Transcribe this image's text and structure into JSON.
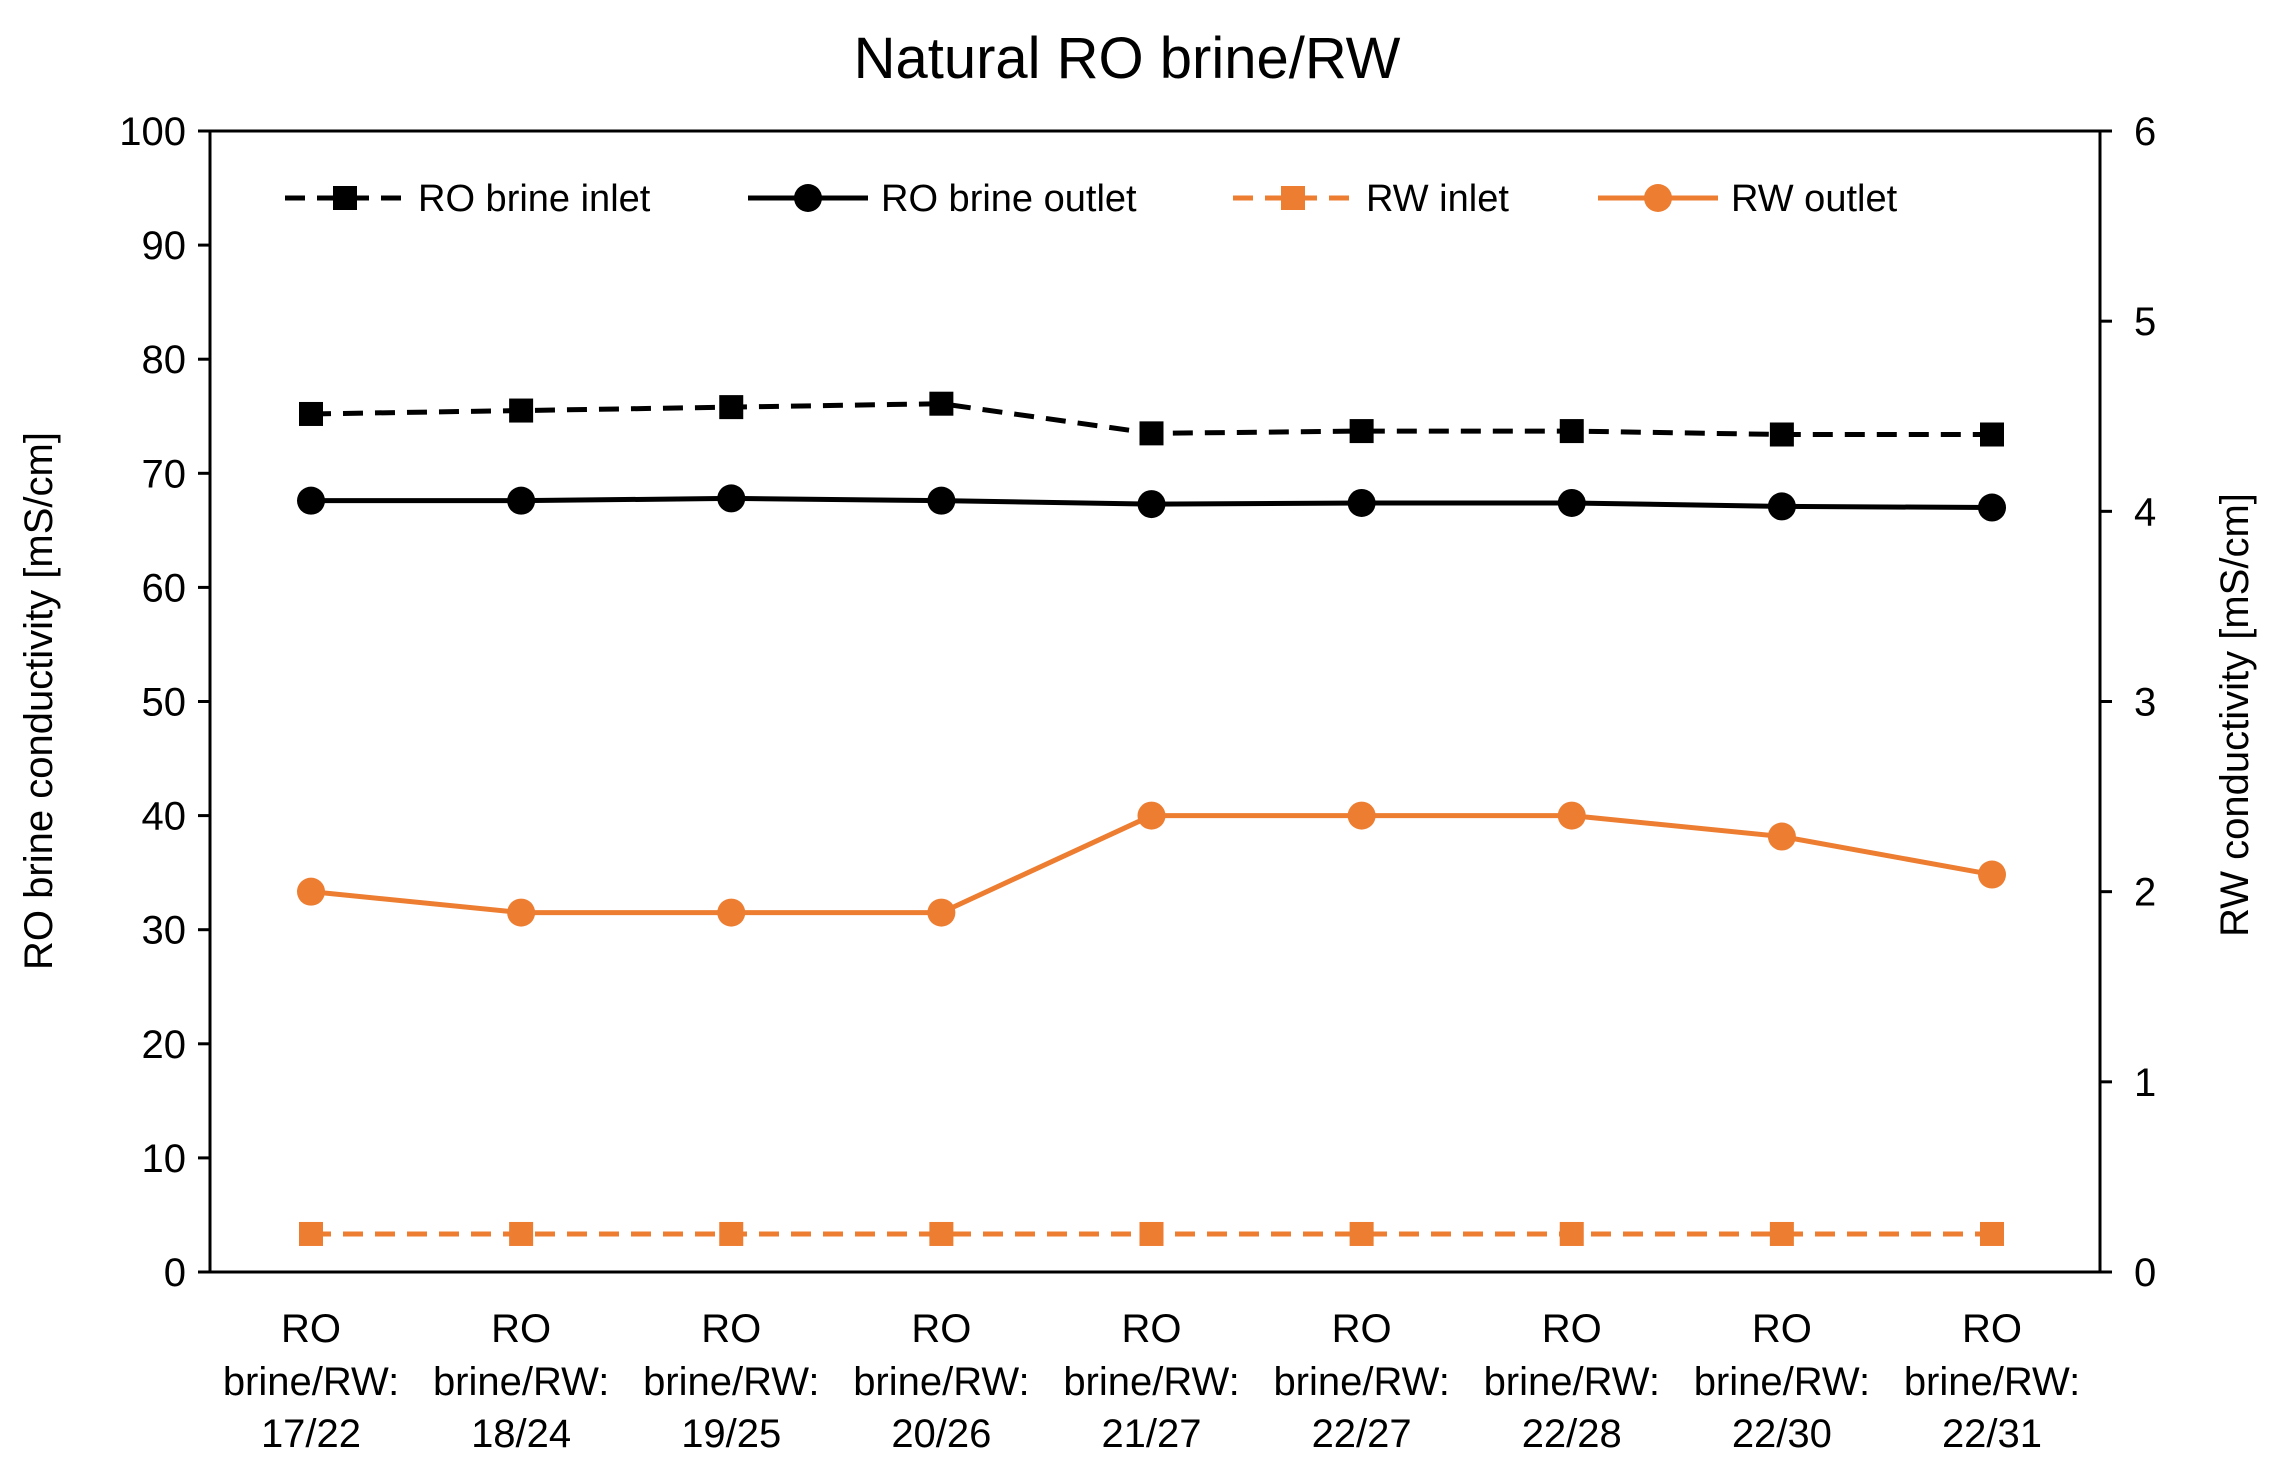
{
  "chart_data": {
    "type": "line",
    "title": "Natural RO brine/RW",
    "categories": [
      [
        "RO",
        "brine/RW:",
        "17/22"
      ],
      [
        "RO",
        "brine/RW:",
        "18/24"
      ],
      [
        "RO",
        "brine/RW:",
        "19/25"
      ],
      [
        "RO",
        "brine/RW:",
        "20/26"
      ],
      [
        "RO",
        "brine/RW:",
        "21/27"
      ],
      [
        "RO",
        "brine/RW:",
        "22/27"
      ],
      [
        "RO",
        "brine/RW:",
        "22/28"
      ],
      [
        "RO",
        "brine/RW:",
        "22/30"
      ],
      [
        "RO",
        "brine/RW:",
        "22/31"
      ]
    ],
    "y_left": {
      "label": "RO brine conductivity [mS/cm]",
      "range": [
        0,
        100
      ],
      "ticks": [
        0,
        10,
        20,
        30,
        40,
        50,
        60,
        70,
        80,
        90,
        100
      ]
    },
    "y_right": {
      "label": "RW conductivity [mS/cm]",
      "range": [
        0,
        6
      ],
      "ticks": [
        0,
        1,
        2,
        3,
        4,
        5,
        6
      ]
    },
    "legend_position": "top",
    "series": [
      {
        "name": "RO brine inlet",
        "axis": "left",
        "color": "#000000",
        "dash": "dashed",
        "marker": "square",
        "values": [
          75.2,
          75.5,
          75.8,
          76.1,
          73.5,
          73.7,
          73.7,
          73.4,
          73.4
        ]
      },
      {
        "name": "RO brine outlet",
        "axis": "left",
        "color": "#000000",
        "dash": "solid",
        "marker": "circle",
        "values": [
          67.6,
          67.6,
          67.8,
          67.6,
          67.3,
          67.4,
          67.4,
          67.1,
          67.0
        ]
      },
      {
        "name": "RW inlet",
        "axis": "right",
        "color": "#ED7D31",
        "dash": "dashed",
        "marker": "square",
        "values": [
          0.2,
          0.2,
          0.2,
          0.2,
          0.2,
          0.2,
          0.2,
          0.2,
          0.2
        ]
      },
      {
        "name": "RW outlet",
        "axis": "right",
        "color": "#ED7D31",
        "dash": "solid",
        "marker": "circle",
        "values": [
          2.0,
          1.89,
          1.89,
          1.89,
          2.4,
          2.4,
          2.4,
          2.29,
          2.09
        ]
      }
    ]
  }
}
